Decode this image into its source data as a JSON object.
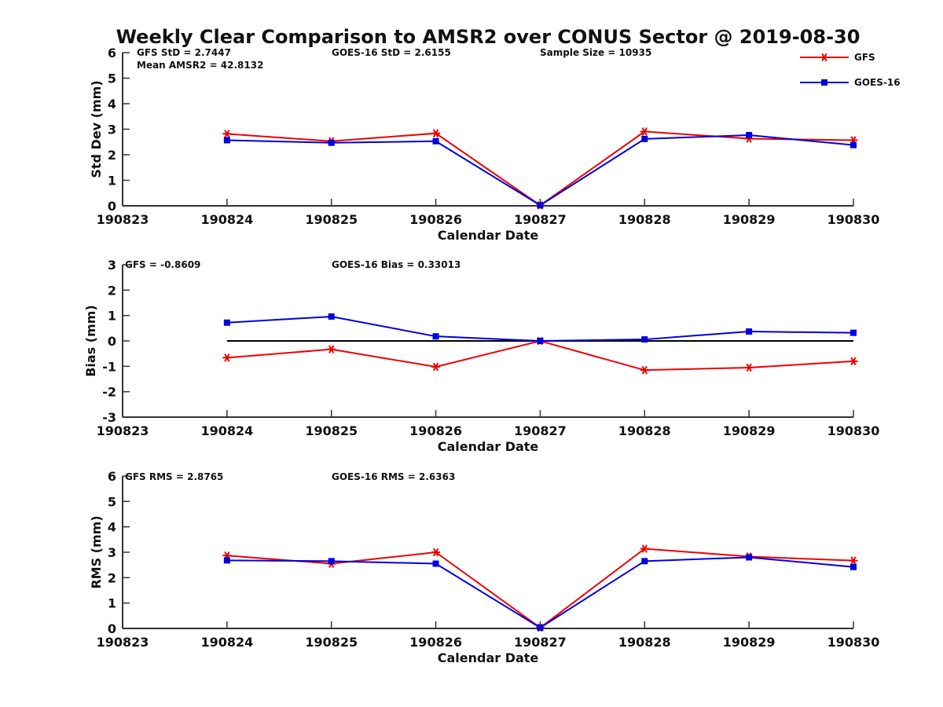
{
  "figure": {
    "title": "Weekly Clear Comparison to AMSR2 over CONUS Sector @ 2019-08-30"
  },
  "legend": {
    "placement": "top-right",
    "entries": [
      {
        "name": "GFS",
        "color": "#ee0000",
        "marker": "asterisk"
      },
      {
        "name": "GOES-16",
        "color": "#0000dd",
        "marker": "square"
      }
    ]
  },
  "colors": {
    "gfs": "#ee0000",
    "goes16": "#0000dd",
    "zero_line": "#000000",
    "axis": "#333333"
  },
  "chart_data": [
    {
      "type": "line",
      "xlabel": "Calendar Date",
      "ylabel": "Std Dev (mm)",
      "x_ticks": [
        "190823",
        "190824",
        "190825",
        "190826",
        "190827",
        "190828",
        "190829",
        "190830"
      ],
      "xlim": [
        0,
        7
      ],
      "ylim": [
        0,
        6
      ],
      "y_ticks": [
        0,
        1,
        2,
        3,
        4,
        5,
        6
      ],
      "grid": false,
      "zero_line": false,
      "annotations": [
        "GFS StD = 2.7447",
        "GOES-16 StD = 2.6155",
        "Sample Size = 10935",
        "Mean AMSR2 = 42.8132"
      ],
      "series": [
        {
          "name": "GFS",
          "x": [
            "190824",
            "190825",
            "190826",
            "190827",
            "190828",
            "190829",
            "190830"
          ],
          "values": [
            2.82,
            2.53,
            2.84,
            0.02,
            2.91,
            2.63,
            2.57
          ]
        },
        {
          "name": "GOES-16",
          "x": [
            "190824",
            "190825",
            "190826",
            "190827",
            "190828",
            "190829",
            "190830"
          ],
          "values": [
            2.57,
            2.47,
            2.53,
            0.02,
            2.62,
            2.77,
            2.38
          ]
        }
      ]
    },
    {
      "type": "line",
      "xlabel": "Calendar Date",
      "ylabel": "Bias (mm)",
      "x_ticks": [
        "190823",
        "190824",
        "190825",
        "190826",
        "190827",
        "190828",
        "190829",
        "190830"
      ],
      "xlim": [
        0,
        7
      ],
      "ylim": [
        -3,
        3
      ],
      "y_ticks": [
        -3,
        -2,
        -1,
        0,
        1,
        2,
        3
      ],
      "grid": false,
      "zero_line": true,
      "annotations": [
        "GFS = -0.8609",
        "GOES-16 Bias  = 0.33013"
      ],
      "series": [
        {
          "name": "GFS",
          "x": [
            "190824",
            "190825",
            "190826",
            "190827",
            "190828",
            "190829",
            "190830"
          ],
          "values": [
            -0.66,
            -0.33,
            -1.02,
            0.0,
            -1.15,
            -1.05,
            -0.8
          ]
        },
        {
          "name": "GOES-16",
          "x": [
            "190824",
            "190825",
            "190826",
            "190827",
            "190828",
            "190829",
            "190830"
          ],
          "values": [
            0.72,
            0.96,
            0.18,
            0.0,
            0.06,
            0.37,
            0.32
          ]
        }
      ]
    },
    {
      "type": "line",
      "xlabel": "Calendar Date",
      "ylabel": "RMS (mm)",
      "x_ticks": [
        "190823",
        "190824",
        "190825",
        "190826",
        "190827",
        "190828",
        "190829",
        "190830"
      ],
      "xlim": [
        0,
        7
      ],
      "ylim": [
        0,
        6
      ],
      "y_ticks": [
        0,
        1,
        2,
        3,
        4,
        5,
        6
      ],
      "grid": false,
      "zero_line": false,
      "annotations": [
        "GFS RMS = 2.8765",
        "GOES-16 RMS = 2.6363"
      ],
      "series": [
        {
          "name": "GFS",
          "x": [
            "190824",
            "190825",
            "190826",
            "190827",
            "190828",
            "190829",
            "190830"
          ],
          "values": [
            2.87,
            2.55,
            3.0,
            0.03,
            3.14,
            2.83,
            2.67
          ]
        },
        {
          "name": "GOES-16",
          "x": [
            "190824",
            "190825",
            "190826",
            "190827",
            "190828",
            "190829",
            "190830"
          ],
          "values": [
            2.68,
            2.65,
            2.55,
            0.03,
            2.65,
            2.8,
            2.42
          ]
        }
      ]
    }
  ]
}
